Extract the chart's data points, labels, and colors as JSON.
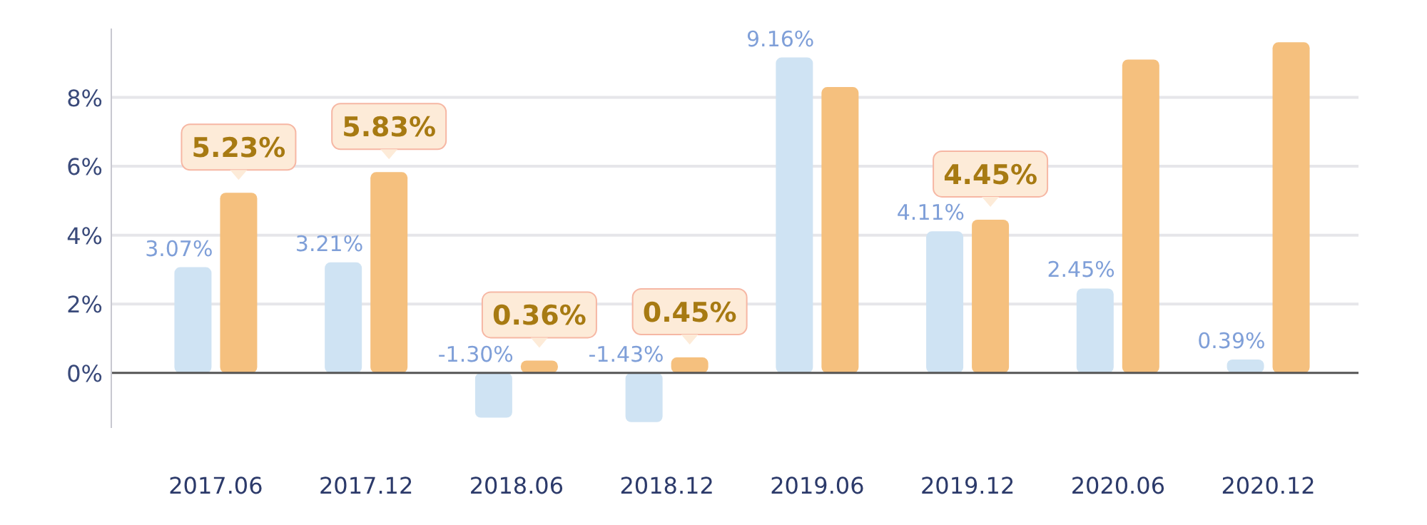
{
  "chart_data": {
    "type": "bar",
    "categories": [
      "2017.06",
      "2017.12",
      "2018.06",
      "2018.12",
      "2019.06",
      "2019.12",
      "2020.06",
      "2020.12"
    ],
    "series": [
      {
        "color": "#cfe3f3",
        "values": [
          3.07,
          3.21,
          -1.3,
          -1.43,
          9.16,
          4.11,
          2.45,
          0.39
        ],
        "value_labels": [
          "3.07%",
          "3.21%",
          "-1.30%",
          "-1.43%",
          "9.16%",
          "4.11%",
          "2.45%",
          "0.39%"
        ]
      },
      {
        "color": "#f5c07e",
        "values": [
          5.23,
          5.83,
          0.36,
          0.45,
          8.3,
          4.45,
          9.1,
          9.6
        ],
        "value_labels": [
          "5.23%",
          "5.83%",
          "0.36%",
          "0.45%",
          null,
          "4.45%",
          null,
          null
        ]
      }
    ],
    "ylim": [
      -1.6,
      10
    ],
    "yticks": [
      {
        "value": 0,
        "label": "0%"
      },
      {
        "value": 2,
        "label": "2%"
      },
      {
        "value": 4,
        "label": "4%"
      },
      {
        "value": 6,
        "label": "6%"
      },
      {
        "value": 8,
        "label": "8%"
      }
    ],
    "grid": "y"
  }
}
